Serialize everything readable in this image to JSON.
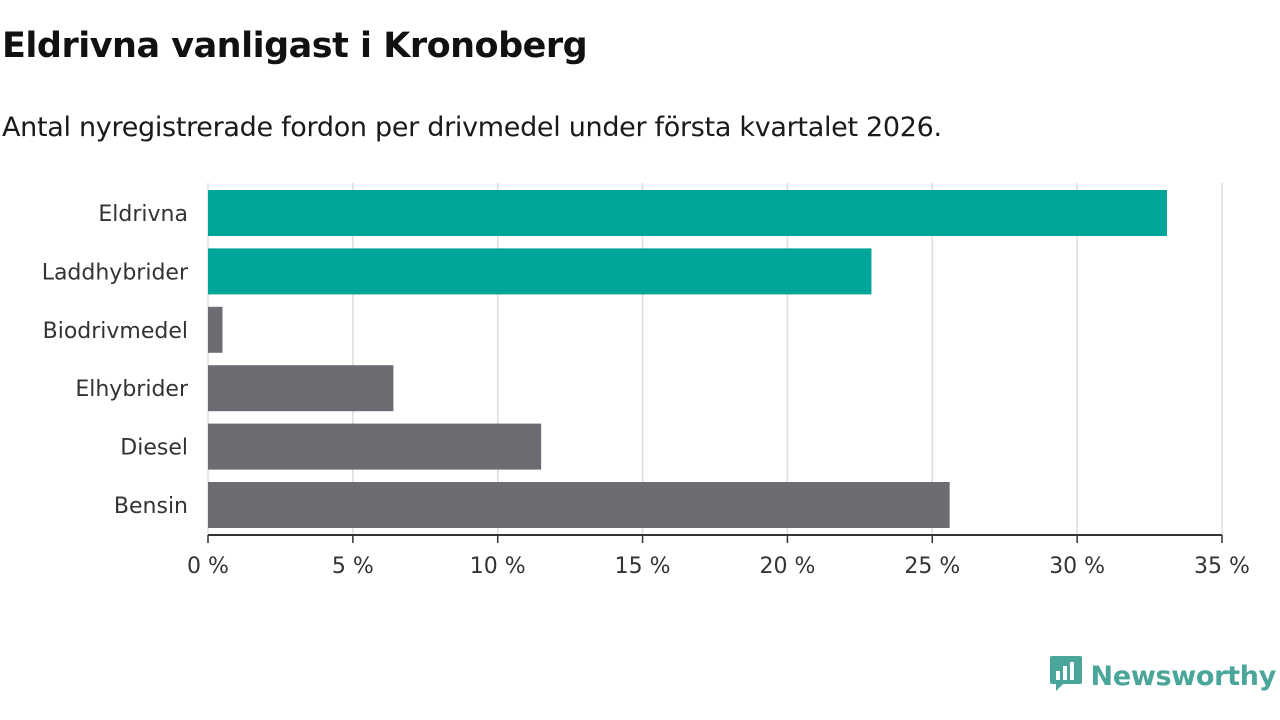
{
  "chart_data": {
    "type": "bar",
    "orientation": "horizontal",
    "title": "Eldrivna vanligast i Kronoberg",
    "subtitle": "Antal nyregistrerade fordon per drivmedel under första kvartalet 2026.",
    "categories": [
      "Eldrivna",
      "Laddhybrider",
      "Biodrivmedel",
      "Elhybrider",
      "Diesel",
      "Bensin"
    ],
    "values": [
      33.1,
      22.9,
      0.5,
      6.4,
      11.5,
      25.6
    ],
    "highlighted": [
      true,
      true,
      false,
      false,
      false,
      false
    ],
    "xlim": [
      0,
      35
    ],
    "xticks": [
      0,
      5,
      10,
      15,
      20,
      25,
      30,
      35
    ],
    "xtick_labels": [
      "0 %",
      "5 %",
      "10 %",
      "15 %",
      "20 %",
      "25 %",
      "30 %",
      "35 %"
    ],
    "xlabel": "",
    "ylabel": "",
    "grid": true,
    "colors": {
      "highlight": "#00a59a",
      "default": "#6d6c73",
      "grid": "#dddddd",
      "axis": "#333333"
    }
  },
  "brand": {
    "name": "Newsworthy",
    "icon": "newsworthy-logo-icon",
    "color": "#4aa59a"
  }
}
